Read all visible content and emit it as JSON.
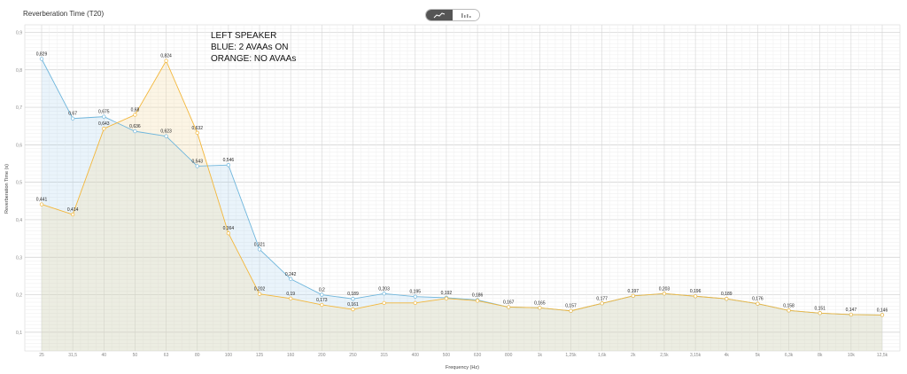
{
  "chart_data": {
    "type": "line",
    "title": "Reverberation Time (T20)",
    "xlabel": "Frequency (Hz)",
    "ylabel": "Reverberation Time (s)",
    "ylim": [
      0.05,
      0.92
    ],
    "grid": true,
    "yticks": [
      "0,1",
      "0,2",
      "0,3",
      "0,4",
      "0,5",
      "0,6",
      "0,7",
      "0,8",
      "0,9"
    ],
    "yticks_values": [
      0.1,
      0.2,
      0.3,
      0.4,
      0.5,
      0.6,
      0.7,
      0.8,
      0.9
    ],
    "categories": [
      "25",
      "31,5",
      "40",
      "50",
      "63",
      "80",
      "100",
      "125",
      "160",
      "200",
      "250",
      "315",
      "400",
      "500",
      "630",
      "800",
      "1k",
      "1,25k",
      "1,6k",
      "2k",
      "2,5k",
      "3,15k",
      "4k",
      "5k",
      "6,3k",
      "8k",
      "10k",
      "12,5k"
    ],
    "series": [
      {
        "color": "#6fb6dc",
        "values": [
          0.829,
          0.67,
          0.675,
          0.636,
          0.623,
          0.543,
          0.546,
          0.321,
          0.242,
          0.2,
          0.189,
          0.203,
          0.195,
          0.192,
          0.186,
          0.167,
          0.165,
          0.157,
          0.177,
          0.197,
          0.203,
          0.196,
          0.189,
          0.176,
          0.158,
          0.151,
          0.147,
          0.146
        ],
        "labels": [
          "0,829",
          "0,67",
          "0,675",
          "0,636",
          "0,623",
          "0,543",
          "0,546",
          "0,321",
          "0,242",
          "0,2",
          "0,189",
          "0,203",
          "0,195",
          "0,192",
          "0,186",
          "",
          "",
          "",
          "",
          "",
          "",
          "",
          "",
          "",
          "",
          "",
          "",
          ""
        ]
      },
      {
        "color": "#f3b73b",
        "values": [
          0.441,
          0.414,
          0.643,
          0.68,
          0.824,
          0.632,
          0.364,
          0.202,
          0.19,
          0.173,
          0.161,
          0.178,
          0.178,
          0.19,
          0.184,
          0.167,
          0.165,
          0.157,
          0.177,
          0.197,
          0.203,
          0.196,
          0.189,
          0.176,
          0.158,
          0.151,
          0.147,
          0.146
        ],
        "labels": [
          "0,441",
          "0,414",
          "0,643",
          "0,68",
          "0,824",
          "0,632",
          "0,364",
          "0,202",
          "0,19",
          "0,173",
          "0,161",
          "",
          "",
          "",
          "",
          "0,167",
          "0,165",
          "0,157",
          "0,177",
          "0,197",
          "0,203",
          "0,196",
          "0,189",
          "0,176",
          "0,158",
          "0,151",
          "0,147",
          "0,146"
        ]
      }
    ],
    "annotations": [
      "LEFT SPEAKER",
      "BLUE: 2 AVAAs ON",
      "ORANGE: NO AVAAs"
    ]
  },
  "toolbar": {
    "line_view_icon": "line-chart-icon",
    "bar_view_icon": "bar-chart-icon",
    "active": "line"
  }
}
